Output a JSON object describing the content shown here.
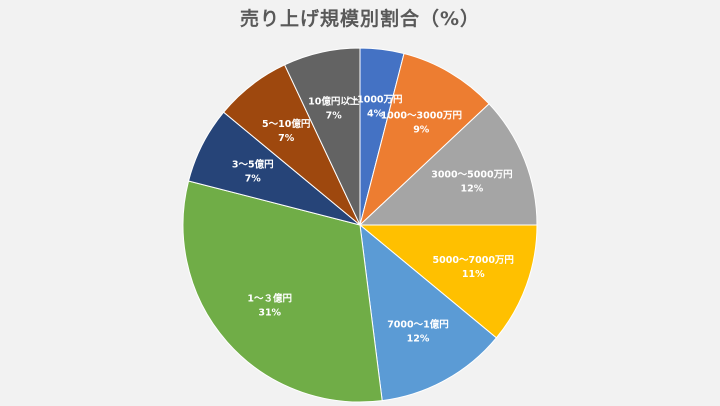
{
  "chart_data": {
    "type": "pie",
    "title": "売り上げ規模別割合（%）",
    "slices": [
      {
        "label": "～1000万円",
        "value": 4,
        "value_label": "4%",
        "color": "#4472c4"
      },
      {
        "label": "1000～3000万円",
        "value": 9,
        "value_label": "9%",
        "color": "#ed7d31"
      },
      {
        "label": "3000～5000万円",
        "value": 12,
        "value_label": "12%",
        "color": "#a5a5a5"
      },
      {
        "label": "5000～7000万円",
        "value": 11,
        "value_label": "11%",
        "color": "#ffc000"
      },
      {
        "label": "7000～1億円",
        "value": 12,
        "value_label": "12%",
        "color": "#5b9bd5"
      },
      {
        "label": "1～３億円",
        "value": 31,
        "value_label": "31%",
        "color": "#70ad47"
      },
      {
        "label": "3～5億円",
        "value": 7,
        "value_label": "7%",
        "color": "#264478"
      },
      {
        "label": "5～10億円",
        "value": 7,
        "value_label": "7%",
        "color": "#9e480e"
      },
      {
        "label": "10億円以上",
        "value": 7,
        "value_label": "7%",
        "color": "#636363"
      }
    ],
    "start_angle_deg": 0,
    "direction": "clockwise",
    "legend": "none"
  }
}
